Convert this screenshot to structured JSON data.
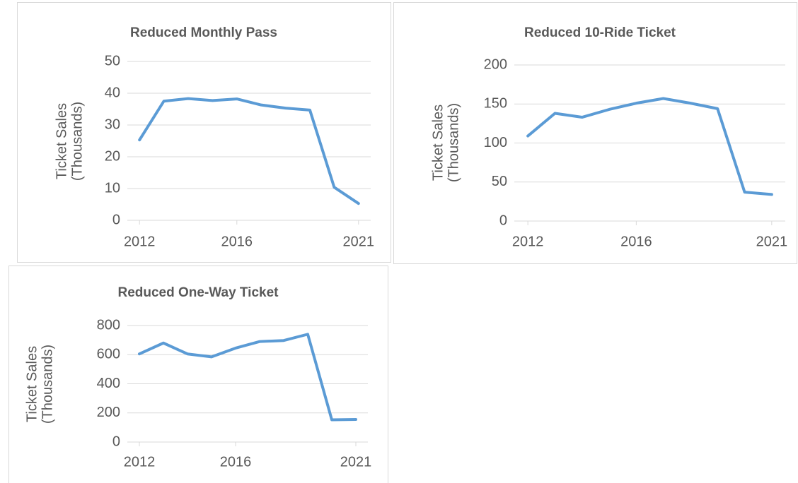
{
  "chart_data": [
    {
      "type": "line",
      "title": "Reduced Monthly Pass",
      "ylabel": [
        "Ticket Sales",
        "(Thousands)"
      ],
      "categories": [
        "2012",
        null,
        null,
        null,
        "2016",
        null,
        null,
        null,
        null,
        "2021"
      ],
      "series": [
        {
          "name": "Reduced Monthly Pass",
          "color": "#5b9bd5",
          "values": [
            25.3,
            37.5,
            38.3,
            37.7,
            38.2,
            36.3,
            35.3,
            34.7,
            10.4,
            5.3
          ]
        }
      ],
      "ylim": [
        0,
        50
      ],
      "yticks": [
        0,
        10,
        20,
        30,
        40,
        50
      ],
      "grid": true
    },
    {
      "type": "line",
      "title": "Reduced 10-Ride Ticket",
      "ylabel": [
        "Ticket Sales",
        "(Thousands)"
      ],
      "categories": [
        "2012",
        null,
        null,
        null,
        "2016",
        null,
        null,
        null,
        null,
        "2021"
      ],
      "series": [
        {
          "name": "Reduced 10-Ride Ticket",
          "color": "#5b9bd5",
          "values": [
            109,
            138,
            133,
            143,
            151,
            157,
            151,
            144,
            37,
            34
          ]
        }
      ],
      "ylim": [
        0,
        200
      ],
      "yticks": [
        0,
        50,
        100,
        150,
        200
      ],
      "grid": true
    },
    {
      "type": "line",
      "title": "Reduced One-Way Ticket",
      "ylabel": [
        "Ticket Sales",
        "(Thousands)"
      ],
      "categories": [
        "2012",
        null,
        null,
        null,
        "2016",
        null,
        null,
        null,
        null,
        "2021"
      ],
      "series": [
        {
          "name": "Reduced One-Way Ticket",
          "color": "#5b9bd5",
          "values": [
            605,
            680,
            605,
            585,
            645,
            690,
            697,
            740,
            153,
            155
          ]
        }
      ],
      "ylim": [
        0,
        800
      ],
      "yticks": [
        0,
        200,
        400,
        600,
        800
      ],
      "grid": true
    }
  ]
}
